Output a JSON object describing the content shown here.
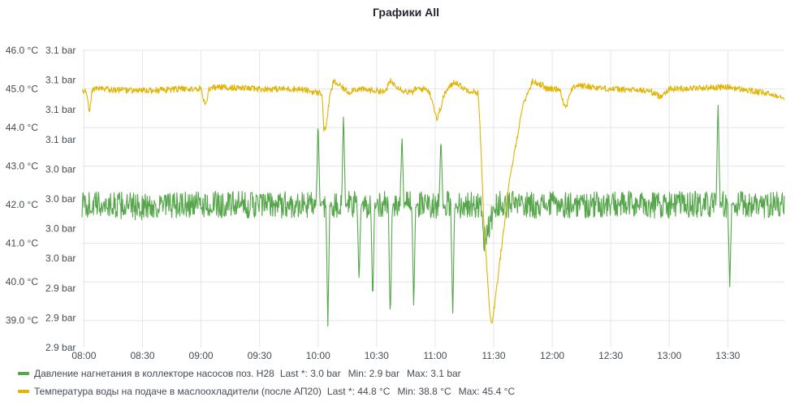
{
  "panel": {
    "title": "Графики All"
  },
  "chart_data": {
    "type": "line",
    "title": "Графики All",
    "x_ticks": [
      "08:00",
      "08:30",
      "09:00",
      "09:30",
      "10:00",
      "10:30",
      "11:00",
      "11:30",
      "12:00",
      "12:30",
      "13:00",
      "13:30"
    ],
    "x_range": [
      "07:59",
      "13:59"
    ],
    "y_left": {
      "unit": "°C",
      "min": 38.3,
      "max": 46.0,
      "tick_labels": [
        "46.0 °C",
        "45.0 °C",
        "44.0 °C",
        "43.0 °C",
        "42.0 °C",
        "41.0 °C",
        "40.0 °C",
        "39.0 °C"
      ],
      "tick_values": [
        46,
        45,
        44,
        43,
        42,
        41,
        40,
        39
      ]
    },
    "y_right": {
      "unit": "bar",
      "min": 2.885,
      "max": 3.1,
      "tick_labels": [
        "3.1 bar",
        "3.1 bar",
        "3.1 bar",
        "3.1 bar",
        "3.0 bar",
        "3.0 bar",
        "3.0 bar",
        "3.0 bar",
        "2.9 bar",
        "2.9 bar",
        "2.9 bar"
      ]
    },
    "grid": true,
    "legend_position": "bottom",
    "series": [
      {
        "name": "Давление нагнетания в коллекторе насосов поз. Н28",
        "color": "#56a64b",
        "axis": "right",
        "stats": [
          {
            "label": "Last *:",
            "value": "3.0 bar"
          },
          {
            "label": "Min:",
            "value": "2.9 bar"
          },
          {
            "label": "Max:",
            "value": "3.1 bar"
          }
        ],
        "noise": 0.35,
        "points": [
          [
            "07:59",
            42.0
          ],
          [
            "08:10",
            42.0
          ],
          [
            "08:30",
            41.95
          ],
          [
            "09:00",
            42.0
          ],
          [
            "09:30",
            42.0
          ],
          [
            "09:59",
            42.0
          ],
          [
            "10:00",
            44.2
          ],
          [
            "10:01",
            42.0
          ],
          [
            "10:04",
            42.0
          ],
          [
            "10:05",
            38.9
          ],
          [
            "10:06",
            42.0
          ],
          [
            "10:12",
            42.0
          ],
          [
            "10:13",
            44.4
          ],
          [
            "10:14",
            42.0
          ],
          [
            "10:20",
            42.0
          ],
          [
            "10:21",
            40.0
          ],
          [
            "10:22",
            42.0
          ],
          [
            "10:27",
            42.0
          ],
          [
            "10:28",
            39.5
          ],
          [
            "10:29",
            42.0
          ],
          [
            "10:36",
            42.0
          ],
          [
            "10:37",
            38.9
          ],
          [
            "10:38",
            42.0
          ],
          [
            "10:42",
            42.0
          ],
          [
            "10:43",
            43.9
          ],
          [
            "10:44",
            42.0
          ],
          [
            "10:48",
            42.0
          ],
          [
            "10:49",
            39.3
          ],
          [
            "10:50",
            42.0
          ],
          [
            "11:02",
            42.0
          ],
          [
            "11:03",
            43.8
          ],
          [
            "11:04",
            42.0
          ],
          [
            "11:08",
            42.0
          ],
          [
            "11:09",
            39.0
          ],
          [
            "11:10",
            42.0
          ],
          [
            "11:24",
            42.0
          ],
          [
            "11:25",
            41.0
          ],
          [
            "11:28",
            41.5
          ],
          [
            "11:31",
            42.0
          ],
          [
            "11:40",
            42.0
          ],
          [
            "12:00",
            42.0
          ],
          [
            "12:30",
            42.0
          ],
          [
            "13:00",
            42.0
          ],
          [
            "13:24",
            42.0
          ],
          [
            "13:25",
            44.8
          ],
          [
            "13:26",
            42.0
          ],
          [
            "13:30",
            42.0
          ],
          [
            "13:31",
            39.8
          ],
          [
            "13:32",
            42.0
          ],
          [
            "13:59",
            42.0
          ]
        ]
      },
      {
        "name": "Температура воды на подаче в маслоохладители (после АП20)",
        "color": "#e0b400",
        "axis": "left",
        "stats": [
          {
            "label": "Last *:",
            "value": "44.8 °C"
          },
          {
            "label": "Min:",
            "value": "38.8 °C"
          },
          {
            "label": "Max:",
            "value": "45.4 °C"
          }
        ],
        "noise": 0.08,
        "points": [
          [
            "07:59",
            45.0
          ],
          [
            "08:01",
            44.9
          ],
          [
            "08:03",
            44.4
          ],
          [
            "08:04",
            44.9
          ],
          [
            "08:05",
            45.0
          ],
          [
            "08:30",
            44.95
          ],
          [
            "08:50",
            45.0
          ],
          [
            "09:00",
            45.0
          ],
          [
            "09:02",
            44.6
          ],
          [
            "09:03",
            44.6
          ],
          [
            "09:04",
            45.0
          ],
          [
            "09:08",
            45.05
          ],
          [
            "09:30",
            45.0
          ],
          [
            "09:50",
            45.0
          ],
          [
            "10:00",
            44.9
          ],
          [
            "10:02",
            44.9
          ],
          [
            "10:03",
            43.9
          ],
          [
            "10:04",
            44.0
          ],
          [
            "10:06",
            44.8
          ],
          [
            "10:08",
            45.2
          ],
          [
            "10:16",
            44.9
          ],
          [
            "10:18",
            45.0
          ],
          [
            "10:32",
            44.95
          ],
          [
            "10:34",
            44.9
          ],
          [
            "10:35",
            45.0
          ],
          [
            "10:37",
            45.2
          ],
          [
            "10:44",
            44.95
          ],
          [
            "10:48",
            44.9
          ],
          [
            "10:50",
            45.0
          ],
          [
            "10:53",
            45.0
          ],
          [
            "10:56",
            45.0
          ],
          [
            "10:58",
            44.8
          ],
          [
            "11:01",
            44.2
          ],
          [
            "11:05",
            44.9
          ],
          [
            "11:10",
            45.2
          ],
          [
            "11:15",
            45.0
          ],
          [
            "11:22",
            44.9
          ],
          [
            "11:23",
            44.0
          ],
          [
            "11:25",
            41.5
          ],
          [
            "11:28",
            39.2
          ],
          [
            "11:29",
            38.9
          ],
          [
            "11:31",
            39.6
          ],
          [
            "11:38",
            42.6
          ],
          [
            "11:45",
            44.6
          ],
          [
            "11:50",
            45.2
          ],
          [
            "11:55",
            45.1
          ],
          [
            "11:57",
            45.0
          ],
          [
            "12:04",
            45.0
          ],
          [
            "12:06",
            44.6
          ],
          [
            "12:07",
            44.5
          ],
          [
            "12:09",
            44.9
          ],
          [
            "12:12",
            45.1
          ],
          [
            "12:30",
            45.0
          ],
          [
            "12:50",
            44.95
          ],
          [
            "12:55",
            44.8
          ],
          [
            "13:00",
            45.0
          ],
          [
            "13:30",
            45.05
          ],
          [
            "13:59",
            44.8
          ]
        ]
      }
    ]
  }
}
